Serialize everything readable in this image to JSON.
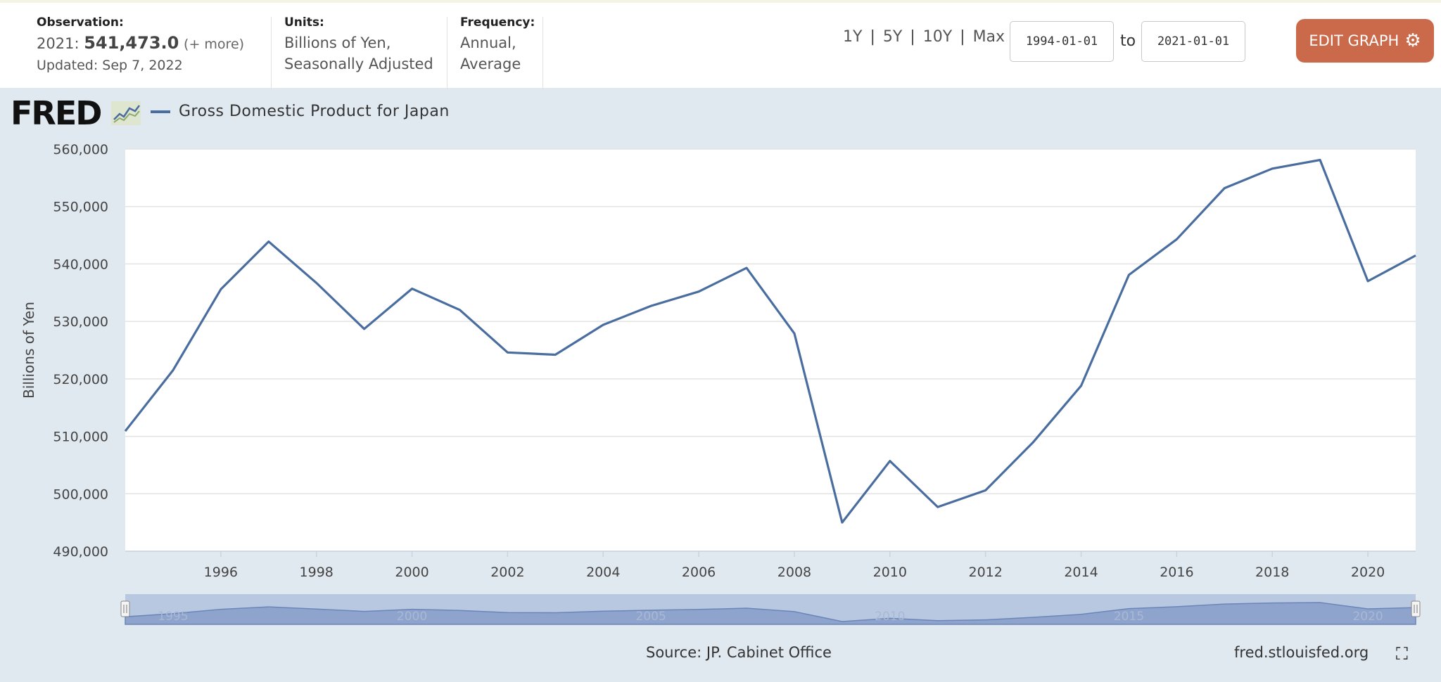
{
  "observation": {
    "label": "Observation:",
    "year": "2021:",
    "value": "541,473.0",
    "more": "(+ more)",
    "updated": "Updated: Sep 7, 2022"
  },
  "units": {
    "label": "Units:",
    "line1": "Billions of Yen,",
    "line2": "Seasonally Adjusted"
  },
  "frequency": {
    "label": "Frequency:",
    "line1": "Annual,",
    "line2": "Average"
  },
  "ranges": [
    "1Y",
    "5Y",
    "10Y",
    "Max"
  ],
  "range_separator": "|",
  "date_from": "1994-01-01",
  "date_to": "2021-01-01",
  "to_label": "to",
  "edit_button": "EDIT GRAPH",
  "logo_text": "FRED",
  "source": "Source: JP. Cabinet Office",
  "site": "fred.stlouisfed.org",
  "icons": {
    "gear": "gear-icon",
    "fullscreen": "fullscreen-icon",
    "logo_chart": "line-chart-icon"
  },
  "colors": {
    "line": "#4a6d9f",
    "button": "#cb6a4b",
    "background": "#e1e9f0",
    "navigator_fill": "#b9c8e1"
  },
  "chart_data": {
    "type": "line",
    "legend": "Gross Domestic Product for Japan",
    "ylabel": "Billions of Yen",
    "xlabel": "",
    "ylim": [
      490000,
      560000
    ],
    "yticks": [
      490000,
      500000,
      510000,
      520000,
      530000,
      540000,
      550000,
      560000
    ],
    "ytick_labels": [
      "490,000",
      "500,000",
      "510,000",
      "520,000",
      "530,000",
      "540,000",
      "550,000",
      "560,000"
    ],
    "xlim": [
      1994,
      2021
    ],
    "xticks": [
      1996,
      1998,
      2000,
      2002,
      2004,
      2006,
      2008,
      2010,
      2012,
      2014,
      2016,
      2018,
      2020
    ],
    "xtick_labels": [
      "1996",
      "1998",
      "2000",
      "2002",
      "2004",
      "2006",
      "2008",
      "2010",
      "2012",
      "2014",
      "2016",
      "2018",
      "2020"
    ],
    "navigator_ticks": [
      1995,
      2000,
      2005,
      2010,
      2015,
      2020
    ],
    "navigator_tick_labels": [
      "1995",
      "2000",
      "2005",
      "2010",
      "2015",
      "2020"
    ],
    "grid": true,
    "series": [
      {
        "name": "Gross Domestic Product for Japan",
        "x": [
          1994,
          1995,
          1996,
          1997,
          1998,
          1999,
          2000,
          2001,
          2002,
          2003,
          2004,
          2005,
          2006,
          2007,
          2008,
          2009,
          2010,
          2011,
          2012,
          2013,
          2014,
          2015,
          2016,
          2017,
          2018,
          2019,
          2020,
          2021
        ],
        "values": [
          510900,
          521500,
          535600,
          543900,
          536700,
          528700,
          535700,
          532000,
          524600,
          524200,
          529400,
          532700,
          535200,
          539300,
          527900,
          495000,
          505700,
          497700,
          500600,
          509000,
          518800,
          538100,
          544300,
          553200,
          556600,
          558100,
          537000,
          541473
        ]
      }
    ]
  }
}
